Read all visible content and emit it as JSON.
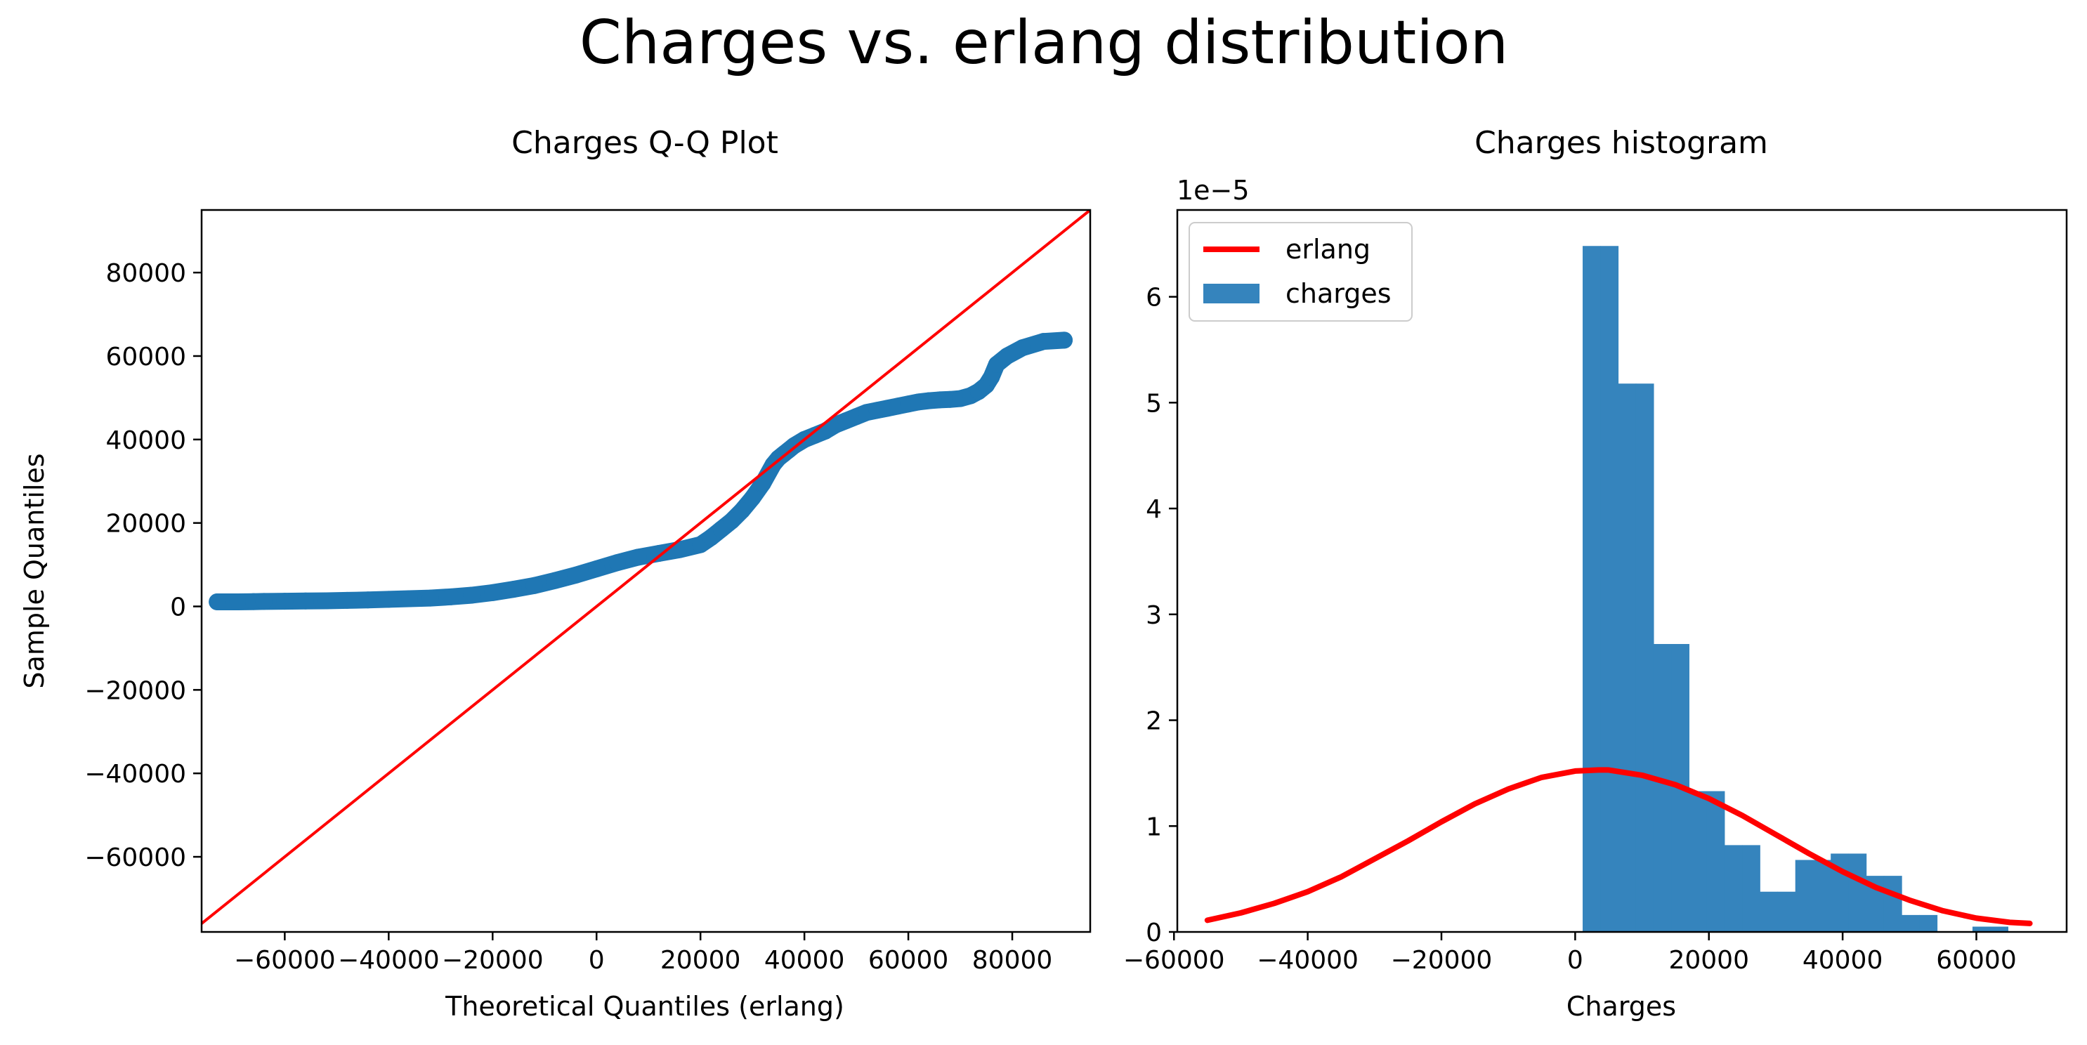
{
  "figure": {
    "suptitle": "Charges vs. erlang distribution"
  },
  "colors": {
    "points": "#1f77b4",
    "line": "#ff0000",
    "bars": "#3584bd",
    "axis": "#000000"
  },
  "chart_data": [
    {
      "type": "scatter",
      "title": "Charges Q-Q Plot",
      "xlabel": "Theoretical Quantiles (erlang)",
      "ylabel": "Sample Quantiles",
      "xlim": [
        -76000,
        95000
      ],
      "ylim": [
        -78000,
        95000
      ],
      "xticks": [
        -60000,
        -40000,
        -20000,
        0,
        20000,
        40000,
        60000,
        80000
      ],
      "xtick_labels": [
        "−60000",
        "−40000",
        "−20000",
        "0",
        "20000",
        "40000",
        "60000",
        "80000"
      ],
      "yticks": [
        -60000,
        -40000,
        -20000,
        0,
        20000,
        40000,
        60000,
        80000
      ],
      "ytick_labels": [
        "−60000",
        "−40000",
        "−20000",
        "0",
        "20000",
        "40000",
        "60000",
        "80000"
      ],
      "reference_line": {
        "name": "",
        "from": [
          -78000,
          -78000
        ],
        "to": [
          95000,
          95000
        ]
      },
      "series": [
        {
          "name": "",
          "x": [
            -73000,
            -69000,
            -66000,
            -64000,
            -60000,
            -56000,
            -52000,
            -48000,
            -44000,
            -40000,
            -36000,
            -32000,
            -28000,
            -24000,
            -20000,
            -16000,
            -12000,
            -8000,
            -4000,
            0,
            4000,
            8000,
            12000,
            16000,
            20000,
            22000,
            24000,
            26000,
            28000,
            30000,
            32000,
            34000,
            35000,
            36000,
            37000,
            38000,
            40000,
            42000,
            44000,
            46000,
            48000,
            50000,
            52000,
            54000,
            56000,
            58000,
            60000,
            62000,
            64000,
            66000,
            68000,
            70000,
            72000,
            73500,
            75000,
            76000,
            77000,
            79000,
            82000,
            86000,
            90000
          ],
          "y": [
            1100,
            1100,
            1150,
            1200,
            1250,
            1300,
            1350,
            1450,
            1550,
            1700,
            1850,
            2000,
            2300,
            2700,
            3300,
            4100,
            5000,
            6200,
            7500,
            9000,
            10500,
            11800,
            12700,
            13600,
            14800,
            16500,
            18500,
            20500,
            23000,
            26000,
            29500,
            34000,
            35500,
            36500,
            37500,
            38500,
            40000,
            41000,
            42000,
            43500,
            44500,
            45500,
            46500,
            47000,
            47500,
            48000,
            48500,
            49000,
            49300,
            49500,
            49600,
            49800,
            50500,
            51500,
            53000,
            55000,
            58000,
            60000,
            62000,
            63500,
            63800
          ]
        }
      ]
    },
    {
      "type": "bar",
      "title": "Charges histogram",
      "xlabel": "Charges",
      "ylabel": "",
      "offset_text": "1e−5",
      "xlim": [
        -59500,
        73500
      ],
      "ylim": [
        0,
        6.82
      ],
      "xticks": [
        -60000,
        -40000,
        -20000,
        0,
        20000,
        40000,
        60000
      ],
      "xtick_labels": [
        "−60000",
        "−40000",
        "−20000",
        "0",
        "20000",
        "40000",
        "60000"
      ],
      "yticks": [
        0,
        1,
        2,
        3,
        4,
        5,
        6
      ],
      "ytick_labels": [
        "0",
        "1",
        "2",
        "3",
        "4",
        "5",
        "6"
      ],
      "legend": {
        "position": "upper-left",
        "entries": [
          "erlang",
          "charges"
        ]
      },
      "bins": {
        "name": "charges",
        "edges": [
          1120,
          3770,
          6420,
          9070,
          11720,
          14370,
          17020,
          19670,
          22320,
          24970,
          27620,
          30270,
          32920,
          35570,
          38220,
          40870,
          43520,
          46170,
          48820,
          51470,
          54120,
          56770,
          59420,
          62070,
          64720
        ],
        "values": [
          6.48,
          6.48,
          5.18,
          5.18,
          2.72,
          2.72,
          1.33,
          1.33,
          0.82,
          0.82,
          0.38,
          0.38,
          0.68,
          0.68,
          0.74,
          0.74,
          0.53,
          0.53,
          0.16,
          0.16,
          0,
          0,
          0.05,
          0.05
        ]
      },
      "curve": {
        "name": "erlang",
        "x": [
          -55000,
          -50000,
          -45000,
          -40000,
          -35000,
          -30000,
          -25000,
          -20000,
          -15000,
          -10000,
          -5000,
          0,
          3500,
          5000,
          10000,
          15000,
          20000,
          25000,
          30000,
          35000,
          40000,
          45000,
          50000,
          55000,
          60000,
          65000,
          68000
        ],
        "y": [
          0.11,
          0.18,
          0.27,
          0.38,
          0.52,
          0.69,
          0.86,
          1.04,
          1.21,
          1.35,
          1.46,
          1.52,
          1.53,
          1.53,
          1.48,
          1.39,
          1.26,
          1.1,
          0.92,
          0.74,
          0.57,
          0.42,
          0.3,
          0.2,
          0.13,
          0.09,
          0.08
        ]
      }
    }
  ]
}
